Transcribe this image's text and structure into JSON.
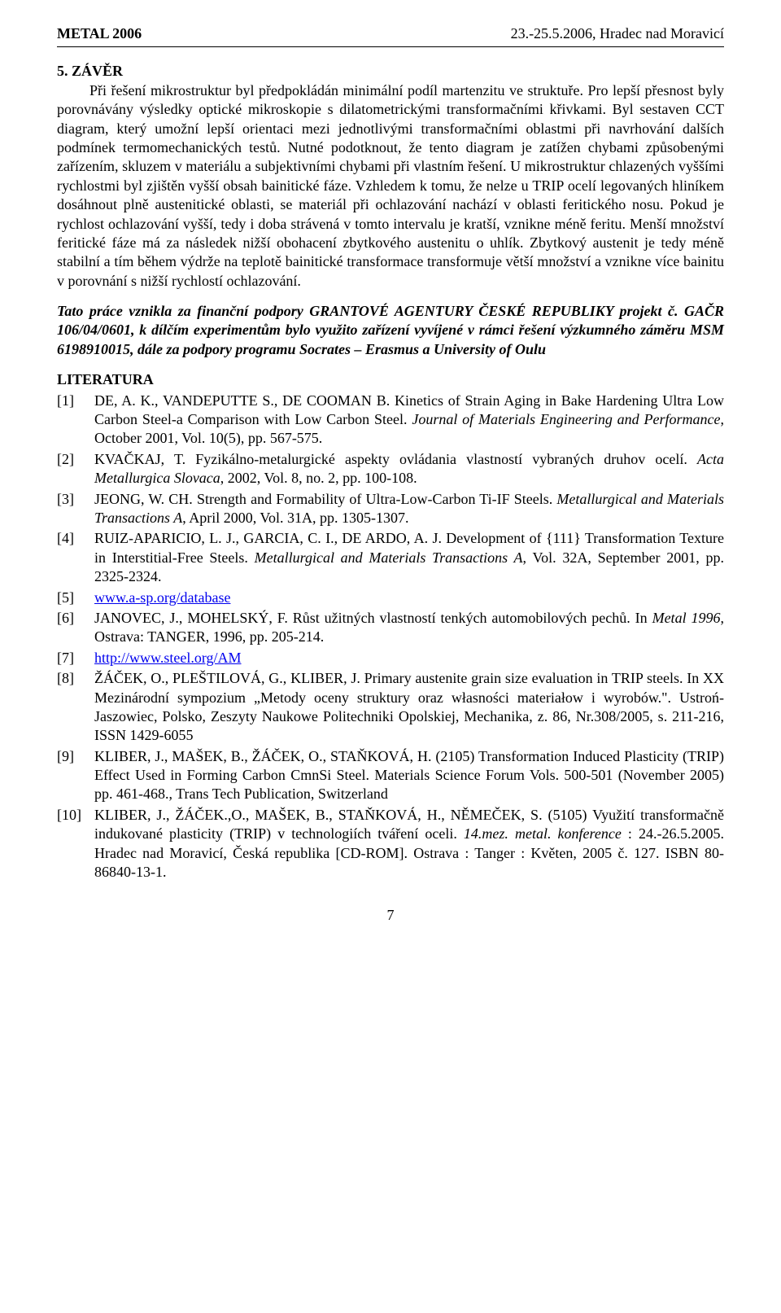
{
  "header": {
    "left": "METAL 2006",
    "right": "23.-25.5.2006, Hradec nad Moravicí"
  },
  "section": {
    "title": "5. ZÁVĚR",
    "body": "Při řešení mikrostruktur byl předpokládán minimální podíl martenzitu ve struktuře. Pro lepší přesnost byly porovnávány výsledky optické mikroskopie s dilatometrickými transformačními křivkami. Byl sestaven CCT diagram, který umožní lepší orientaci mezi jednotlivými transformačními oblastmi při navrhování dalších podmínek termomechanických testů. Nutné podotknout, že tento diagram je zatížen chybami způsobenými zařízením, skluzem v materiálu a subjektivními chybami při vlastním řešení. U mikrostruktur chlazených vyššími rychlostmi byl zjištěn vyšší obsah bainitické fáze. Vzhledem k tomu, že nelze u TRIP ocelí legovaných hliníkem dosáhnout plně austenitické oblasti, se materiál při ochlazování nachází v oblasti feritického nosu. Pokud je rychlost ochlazování vyšší, tedy i doba strávená v tomto intervalu je kratší, vznikne méně feritu. Menší množství feritické fáze má za následek nižší obohacení zbytkového austenitu o uhlík. Zbytkový austenit je tedy méně stabilní a tím během výdrže na teplotě bainitické transformace transformuje větší množství a vznikne více bainitu v porovnání s nižší rychlostí ochlazování."
  },
  "ack": "Tato práce vznikla za finanční podpory GRANTOVÉ AGENTURY ČESKÉ REPUBLIKY projekt č. GAČR 106/04/0601, k dílčím experimentům bylo využito zařízení vyvíjené v rámci řešení výzkumného záměru MSM 6198910015, dále za podpory programu Socrates – Erasmus a University of Oulu",
  "literature": {
    "title": "LITERATURA",
    "refs": [
      {
        "n": "[1]",
        "html": "DE, A. K., VANDEPUTTE S., DE COOMAN B. Kinetics of Strain Aging in Bake Hardening Ultra Low Carbon Steel-a Comparison with Low Carbon Steel. <span class=\"italic\">Journal of Materials Engineering and Performance</span>, October 2001, Vol. 10(5), pp. 567-575."
      },
      {
        "n": "[2]",
        "html": "KVAČKAJ, T. Fyzikálno-metalurgické aspekty ovládania vlastností vybraných druhov ocelí. <span class=\"italic\">Acta Metallurgica Slovaca</span>, 2002, Vol. 8, no. 2, pp. 100-108."
      },
      {
        "n": "[3]",
        "html": "JEONG, W. CH. Strength and Formability of Ultra-Low-Carbon Ti-IF Steels. <span class=\"italic\">Metallurgical and Materials Transactions A</span>, April 2000, Vol. 31A, pp. 1305-1307."
      },
      {
        "n": "[4]",
        "html": "RUIZ-APARICIO, L. J., GARCIA, C. I., DE ARDO, A. J. Development of {111} Transformation Texture in Interstitial-Free Steels. <span class=\"italic\">Metallurgical and Materials Transactions A</span>, Vol. 32A, September 2001, pp. 2325-2324."
      },
      {
        "n": "[5]",
        "html": "<span class=\"link\">www.a-sp.org/database</span>"
      },
      {
        "n": "[6]",
        "html": "JANOVEC, J., MOHELSKÝ, F. Růst užitných vlastností tenkých automobilových pechů. In <span class=\"italic\">Metal 1996</span>, Ostrava: TANGER, 1996, pp. 205-214."
      },
      {
        "n": "[7]",
        "html": "<span class=\"link\">http://www.steel.org/AM</span>"
      },
      {
        "n": "[8]",
        "html": "ŽÁČEK, O., PLEŠTILOVÁ, G., KLIBER, J. Primary austenite grain size evaluation in TRIP steels. In XX Mezinárodní sympozium „Metody oceny struktury oraz własności materiałow i wyrobów.\". Ustroń-Jaszowiec, Polsko, Zeszyty Naukowe Politechniki Opolskiej, Mechanika, z. 86, Nr.308/2005, s. 211-216, ISSN 1429-6055"
      },
      {
        "n": "[9]",
        "html": "KLIBER, J., MAŠEK, B., ŽÁČEK, O., STAŇKOVÁ, H. (2105) Transformation Induced Plasticity (TRIP) Effect Used in Forming Carbon CmnSi Steel. Materials Science Forum Vols. 500-501 (November 2005) pp. 461-468., Trans Tech Publication, Switzerland"
      },
      {
        "n": "[10]",
        "html": "KLIBER, J., ŽÁČEK.,O., MAŠEK, B., STAŇKOVÁ, H., NĚMEČEK, S. (5105) Využití transformačně indukované plasticity (TRIP) v technologiích tváření oceli. <span class=\"italic\">14.mez. metal. konference</span> : 24.-26.5.2005. Hradec nad Moravicí, Česká republika [CD-ROM]. Ostrava : Tanger : Květen, 2005 č. 127. ISBN 80-86840-13-1."
      }
    ]
  },
  "page_number": "7"
}
